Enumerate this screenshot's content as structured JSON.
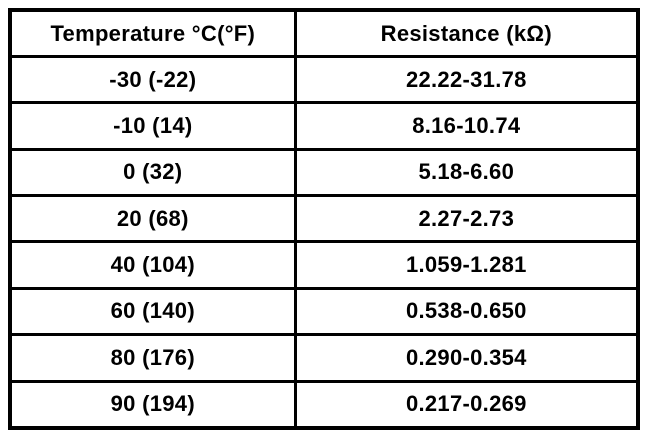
{
  "table": {
    "columns": [
      {
        "label": "Temperature °C(°F)"
      },
      {
        "label": "Resistance (kΩ)"
      }
    ],
    "rows": [
      {
        "temperature": "-30 (-22)",
        "resistance": "22.22-31.78"
      },
      {
        "temperature": "-10 (14)",
        "resistance": "8.16-10.74"
      },
      {
        "temperature": "0 (32)",
        "resistance": "5.18-6.60"
      },
      {
        "temperature": "20 (68)",
        "resistance": "2.27-2.73"
      },
      {
        "temperature": "40 (104)",
        "resistance": "1.059-1.281"
      },
      {
        "temperature": "60 (140)",
        "resistance": "0.538-0.650"
      },
      {
        "temperature": "80 (176)",
        "resistance": "0.290-0.354"
      },
      {
        "temperature": "90 (194)",
        "resistance": "0.217-0.269"
      }
    ]
  },
  "colors": {
    "border": "#000000",
    "text": "#000000",
    "background": "#ffffff"
  }
}
